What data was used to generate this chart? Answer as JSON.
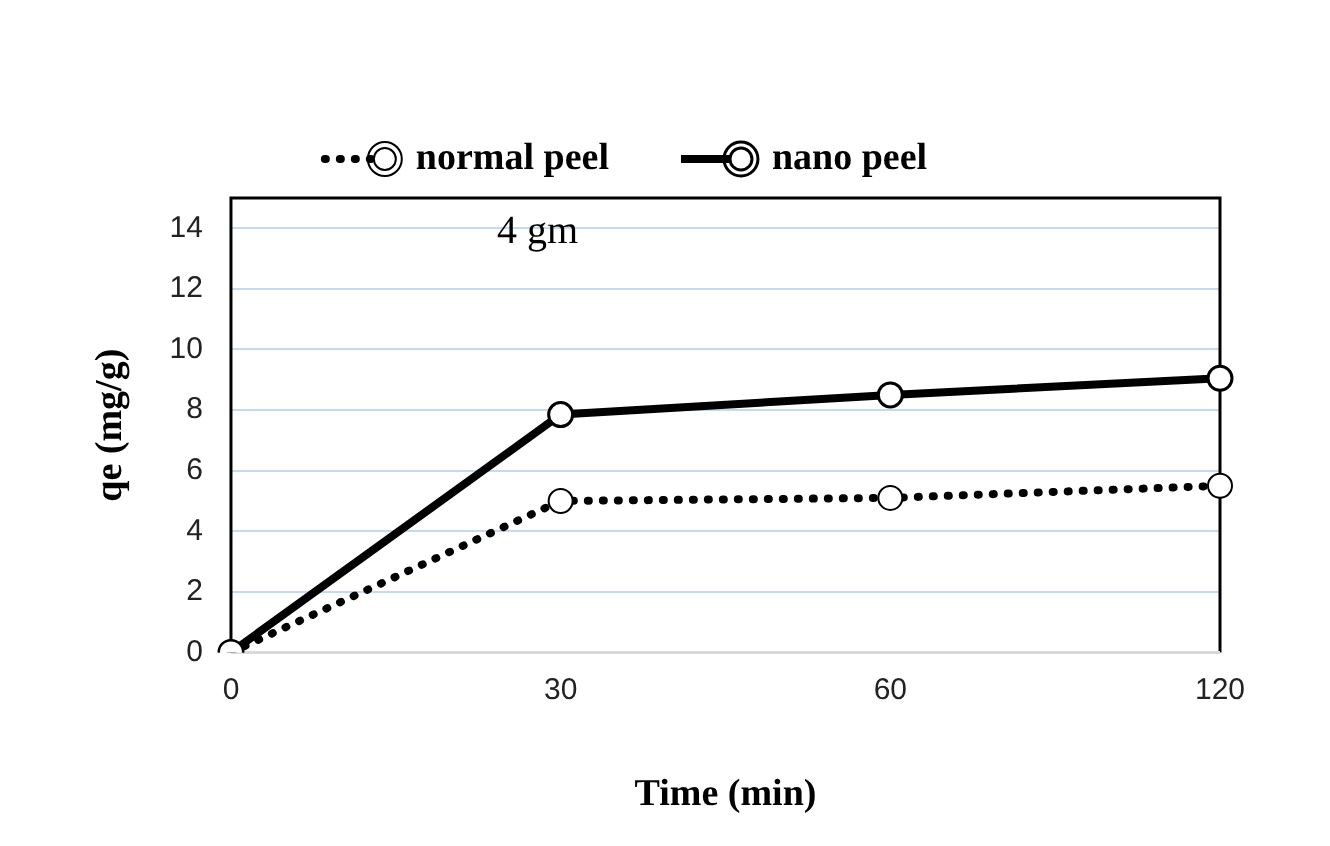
{
  "chart_data": {
    "type": "line",
    "xlabel": "Time (min)",
    "ylabel": "qe (mg/g)",
    "annotations": [
      "4 gm"
    ],
    "categories": [
      "0",
      "30",
      "60",
      "120"
    ],
    "series": [
      {
        "name": "normal peel",
        "color": "#000000",
        "values": [
          0,
          5.0,
          5.1,
          5.5
        ],
        "line_style": "dotted"
      },
      {
        "name": "nano peel",
        "color": "#000000",
        "values": [
          0,
          7.85,
          8.5,
          9.05
        ],
        "line_style": "solid"
      }
    ],
    "ylim": [
      0,
      15
    ],
    "yticks": [
      0,
      2,
      4,
      6,
      8,
      10,
      12,
      14
    ],
    "grid": "y",
    "legend": "top",
    "marker": "circle"
  }
}
